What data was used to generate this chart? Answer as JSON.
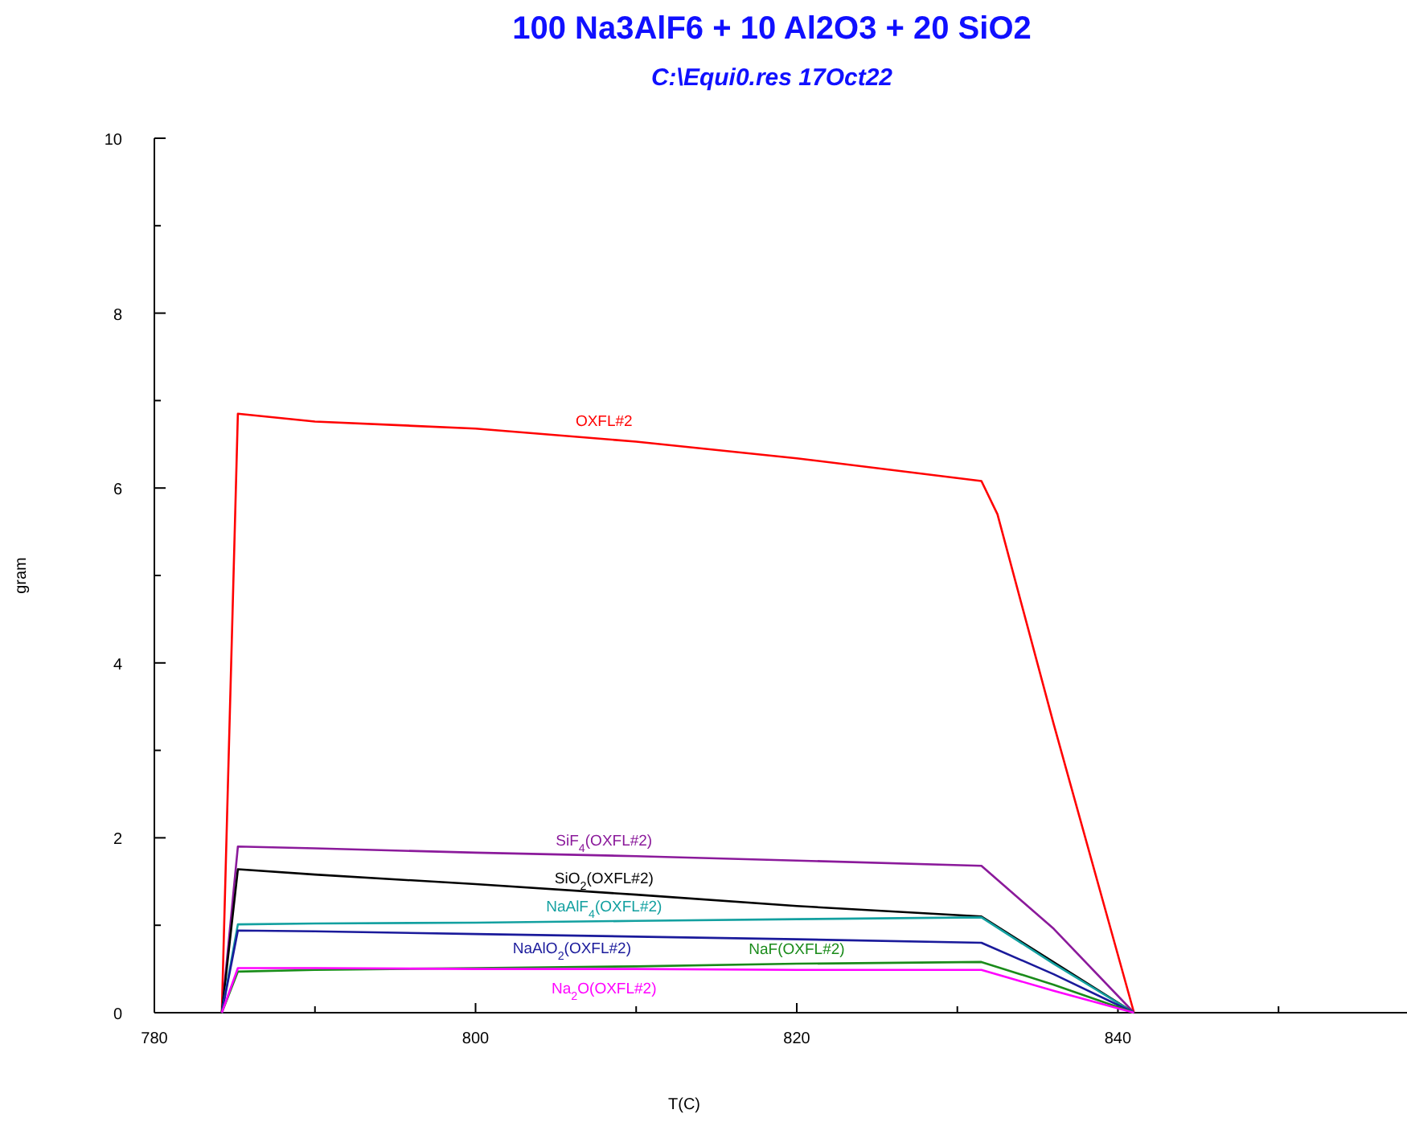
{
  "chart_data": {
    "type": "line",
    "title": "100 Na3AlF6 +  10 Al2O3 +  20 SiO2",
    "subtitle": "C:\\Equi0.res  17Oct22",
    "xlabel": "T(C)",
    "ylabel": "gram",
    "xlim": [
      780,
      858
    ],
    "xticks": [
      780,
      {
        "value": 790,
        "label": null
      },
      800,
      {
        "value": 810,
        "label": null
      },
      820,
      {
        "value": 830,
        "label": null
      },
      840,
      {
        "value": 850,
        "label": null
      }
    ],
    "ylim": [
      0,
      10
    ],
    "yticks": [
      0,
      {
        "value": 1,
        "label": null
      },
      2,
      {
        "value": 3,
        "label": null
      },
      4,
      {
        "value": 5,
        "label": null
      },
      6,
      {
        "value": 7,
        "label": null
      },
      8,
      {
        "value": 9,
        "label": null
      },
      10
    ],
    "grid": false,
    "legend": false,
    "marker": "none",
    "line_style": "solid",
    "series": [
      {
        "name": "OXFL#2",
        "color": "#ff0000",
        "x": [
          784.2,
          785.2,
          790,
          800,
          810,
          820,
          831.5,
          832.5,
          836,
          841
        ],
        "values": [
          0,
          6.85,
          6.76,
          6.68,
          6.53,
          6.34,
          6.08,
          5.7,
          3.3,
          0
        ]
      },
      {
        "name": "SiF$_{4}$(OXFL#2)",
        "color": "#8b1a9b",
        "x": [
          784.2,
          785.2,
          790,
          800,
          810,
          820,
          831.5,
          836,
          841
        ],
        "values": [
          0,
          1.9,
          1.88,
          1.83,
          1.79,
          1.74,
          1.68,
          0.96,
          0
        ]
      },
      {
        "name": "SiO$_{2}$(OXFL#2)",
        "color": "#000000",
        "x": [
          784.2,
          785.2,
          790,
          800,
          810,
          820,
          831.5,
          841
        ],
        "values": [
          0,
          1.64,
          1.58,
          1.47,
          1.35,
          1.22,
          1.1,
          0
        ]
      },
      {
        "name": "NaAlF$_{4}$(OXFL#2)",
        "color": "#13a0a0",
        "x": [
          784.2,
          785.2,
          790,
          800,
          810,
          820,
          831.5,
          836,
          841
        ],
        "values": [
          0,
          1.01,
          1.02,
          1.03,
          1.05,
          1.07,
          1.09,
          0.56,
          0
        ]
      },
      {
        "name": "NaAlO$_{2}$(OXFL#2)",
        "color": "#1a1a9b",
        "x": [
          784.2,
          785.2,
          790,
          800,
          810,
          820,
          831.5,
          836,
          841
        ],
        "values": [
          0,
          0.94,
          0.93,
          0.9,
          0.87,
          0.84,
          0.8,
          0.44,
          0
        ]
      },
      {
        "name": "NaF(OXFL#2)",
        "color": "#1a8b1a",
        "x": [
          784.2,
          785.2,
          790,
          800,
          810,
          820,
          831.5,
          836,
          841
        ],
        "values": [
          0,
          0.47,
          0.49,
          0.51,
          0.53,
          0.56,
          0.58,
          0.32,
          0
        ]
      },
      {
        "name": "Na$_{2}$O(OXFL#2)",
        "color": "#ff00ff",
        "x": [
          784.2,
          785.2,
          790,
          800,
          810,
          820,
          831.5,
          836,
          841
        ],
        "values": [
          0,
          0.51,
          0.51,
          0.5,
          0.5,
          0.49,
          0.49,
          0.25,
          0
        ]
      }
    ]
  }
}
